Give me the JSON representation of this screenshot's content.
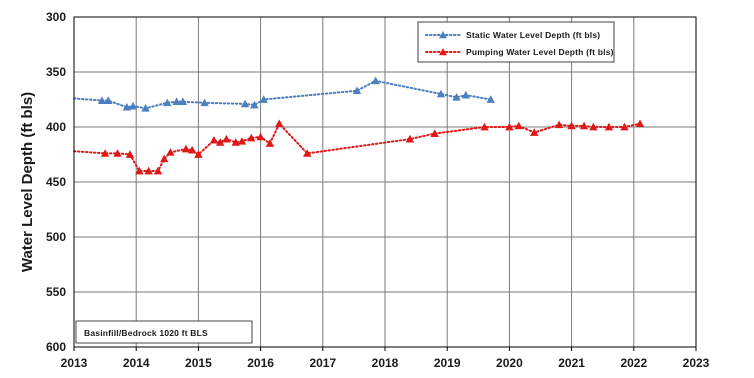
{
  "chart_data": {
    "type": "line",
    "title": "",
    "xlabel": "",
    "ylabel": "Water Level Depth (ft bls)",
    "xlim": [
      2013,
      2023
    ],
    "ylim": [
      300,
      600
    ],
    "y_inverted": true,
    "x_ticks": [
      "2013",
      "2014",
      "2015",
      "2016",
      "2017",
      "2018",
      "2019",
      "2020",
      "2021",
      "2022",
      "2023"
    ],
    "y_ticks": [
      "300",
      "350",
      "400",
      "450",
      "500",
      "550",
      "600"
    ],
    "grid": true,
    "legend_position": "top-right",
    "annotation": "Basinfill/Bedrock 1020 ft BLS",
    "series": [
      {
        "name": "Static Water Level Depth (ft bls)",
        "color": "#4a7fc0",
        "marker": "triangle",
        "line_style": "dotted",
        "x": [
          2013.0,
          2013.45,
          2013.55,
          2013.85,
          2013.95,
          2014.15,
          2014.5,
          2014.65,
          2014.75,
          2015.1,
          2015.75,
          2015.9,
          2016.05,
          2017.55,
          2017.85,
          2018.9,
          2019.15,
          2019.3,
          2019.7
        ],
        "y": [
          374,
          376,
          376,
          382,
          381,
          383,
          378,
          377,
          377,
          378,
          379,
          380,
          375,
          367,
          358,
          370,
          373,
          371,
          375
        ]
      },
      {
        "name": "Pumping Water Level Depth (ft bls)",
        "color": "#e01818",
        "marker": "triangle",
        "line_style": "dotted",
        "x": [
          2013.0,
          2013.5,
          2013.7,
          2013.9,
          2014.05,
          2014.2,
          2014.35,
          2014.45,
          2014.55,
          2014.8,
          2014.9,
          2015.0,
          2015.25,
          2015.35,
          2015.45,
          2015.6,
          2015.7,
          2015.85,
          2016.0,
          2016.15,
          2016.3,
          2016.75,
          2018.4,
          2018.8,
          2019.6,
          2020.0,
          2020.15,
          2020.4,
          2020.8,
          2021.0,
          2021.2,
          2021.35,
          2021.6,
          2021.85,
          2022.1
        ],
        "y": [
          422,
          424,
          424,
          425,
          440,
          440,
          440,
          429,
          423,
          420,
          421,
          425,
          412,
          414,
          411,
          414,
          413,
          410,
          409,
          415,
          397,
          424,
          411,
          406,
          400,
          400,
          399,
          405,
          398,
          399,
          399,
          400,
          400,
          400,
          397
        ]
      }
    ]
  }
}
